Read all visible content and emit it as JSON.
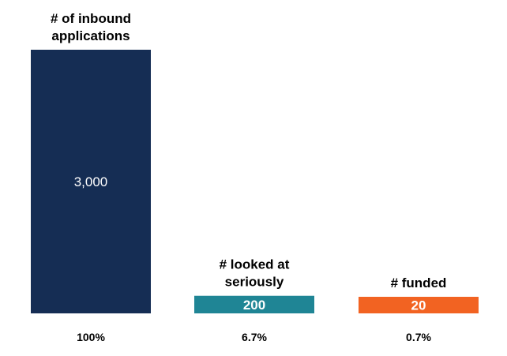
{
  "chart_data": {
    "type": "bar",
    "categories": [
      "# of inbound applications",
      "# looked at seriously",
      "# funded"
    ],
    "category_lines": [
      [
        "# of inbound",
        "applications"
      ],
      [
        "# looked at",
        "seriously"
      ],
      [
        "# funded"
      ]
    ],
    "values": [
      3000,
      200,
      20
    ],
    "value_labels": [
      "3,000",
      "200",
      "20"
    ],
    "percent_labels": [
      "100%",
      "6.7%",
      "0.7%"
    ],
    "colors": [
      "#152d54",
      "#1f8595",
      "#f26322"
    ],
    "title": "",
    "xlabel": "",
    "ylabel": "",
    "ylim": [
      0,
      3000
    ],
    "grid": false,
    "legend": "none"
  }
}
